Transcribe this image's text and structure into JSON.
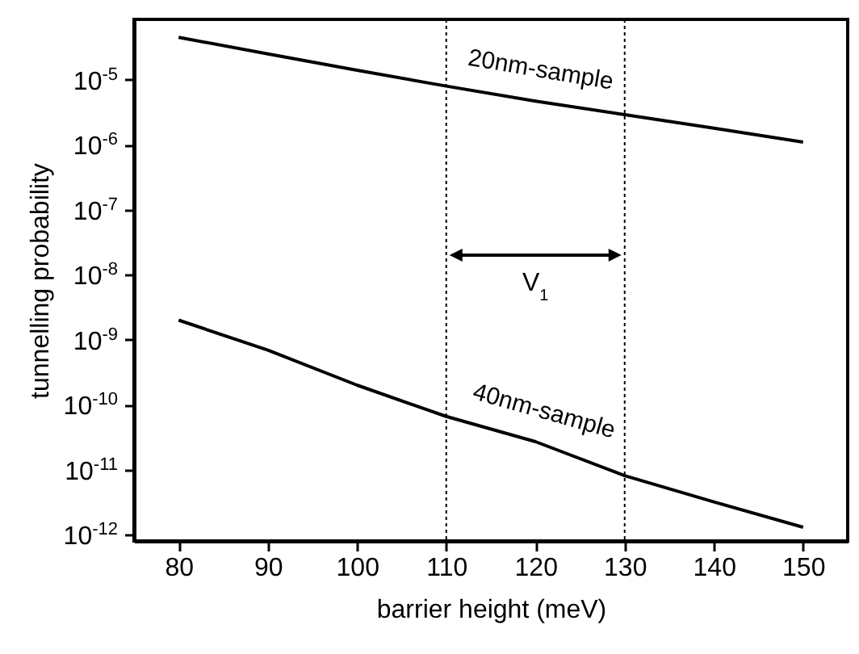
{
  "chart_data": {
    "type": "line",
    "xlabel": "barrier height (meV)",
    "ylabel": "tunnelling probability",
    "x": [
      80,
      90,
      100,
      110,
      120,
      130,
      140,
      150
    ],
    "series": [
      {
        "name": "20nm-sample",
        "color": "#000000",
        "values": [
          4.5e-05,
          2.5e-05,
          1.4e-05,
          8e-06,
          4.7e-06,
          2.9e-06,
          1.8e-06,
          1.1e-06
        ]
      },
      {
        "name": "40nm-sample",
        "color": "#000000",
        "values": [
          2e-09,
          6.9e-10,
          2e-10,
          6.6e-11,
          2.7e-11,
          8.1e-12,
          3.2e-12,
          1.3e-12
        ]
      }
    ],
    "log": "y",
    "xlim": [
      75,
      155
    ],
    "xticks": [
      80,
      90,
      100,
      110,
      120,
      130,
      140,
      150
    ],
    "ylim": [
      8e-13,
      8.5e-05
    ],
    "yticks": [
      {
        "value": 1e-12,
        "label": "10$^{-12}$"
      },
      {
        "value": 1e-11,
        "label": "10$^{-11}$"
      },
      {
        "value": 1e-10,
        "label": "10$^{-10}$"
      },
      {
        "value": 1e-09,
        "label": "10$^{-9}$"
      },
      {
        "value": 1e-08,
        "label": "10$^{-8}$"
      },
      {
        "value": 1e-07,
        "label": "10$^{-7}$"
      },
      {
        "value": 1e-06,
        "label": "10$^{-6}$"
      },
      {
        "value": 1e-05,
        "label": "10$^{-5}$"
      }
    ],
    "ref_lines": [
      {
        "axis": "x",
        "value": 110,
        "color": "#000000",
        "line_style": "dotted"
      },
      {
        "axis": "x",
        "value": 130,
        "color": "#000000",
        "line_style": "dotted"
      }
    ],
    "annotations": [
      "V$_{1}$"
    ],
    "grid": false,
    "marker": "none",
    "line_style": "solid"
  }
}
